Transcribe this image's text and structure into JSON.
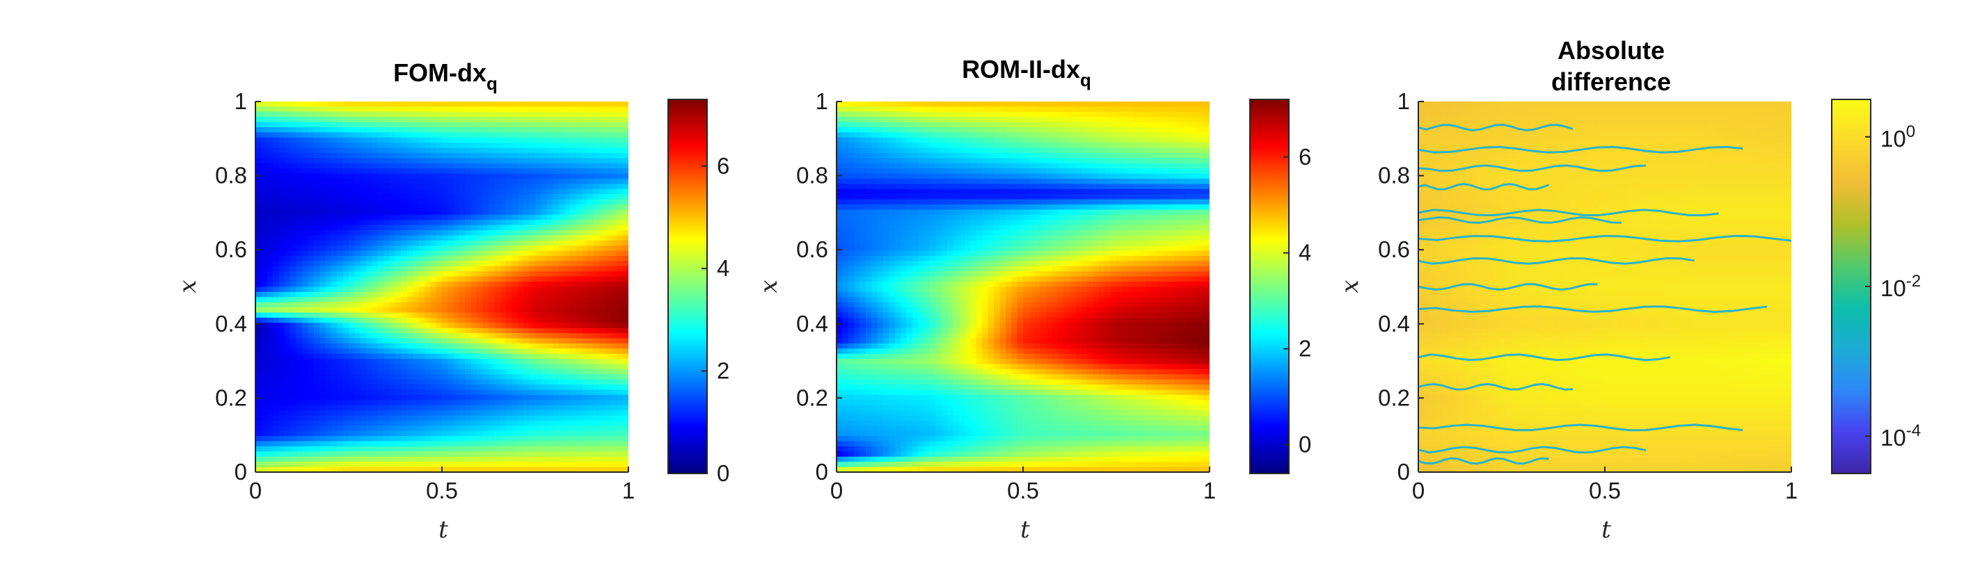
{
  "colors": {
    "jet": [
      "#00007f",
      "#0000ff",
      "#007fff",
      "#00ffff",
      "#7fff7f",
      "#ffff00",
      "#ff7f00",
      "#ff0000",
      "#7f0000"
    ],
    "parula": [
      "#3e26a8",
      "#4743f0",
      "#2e87f8",
      "#1cacd6",
      "#0cbfaa",
      "#53c969",
      "#b1c028",
      "#f1bd36",
      "#fbda2b",
      "#f9fb15"
    ],
    "axis": "#262626"
  },
  "chart_data": [
    {
      "type": "heatmap",
      "title_main": "FOM-dx",
      "title_sub": "q",
      "xlabel": "t",
      "ylabel": "x",
      "xlim": [
        0,
        1
      ],
      "ylim": [
        0,
        1
      ],
      "xticks": [
        "0",
        "0.5",
        "1"
      ],
      "yticks": [
        "0",
        "0.2",
        "0.4",
        "0.6",
        "0.8",
        "1"
      ],
      "colormap": "jet",
      "clim": [
        0,
        7.3
      ],
      "colorbar_ticks": [
        "0",
        "2",
        "4",
        "6"
      ],
      "colorbar_tick_values": [
        0,
        2,
        4,
        6
      ],
      "colorbar_scale": "linear",
      "x": [
        0,
        0.25,
        0.5,
        0.75,
        1
      ],
      "y": [
        0,
        0.1,
        0.2,
        0.3,
        0.4,
        0.44,
        0.5,
        0.6,
        0.7,
        0.8,
        0.9,
        1
      ],
      "z": [
        [
          4.5,
          5.0,
          5.0,
          5.0,
          5.0
        ],
        [
          1.0,
          1.8,
          2.4,
          3.0,
          3.2
        ],
        [
          0.8,
          1.0,
          1.3,
          1.8,
          2.2
        ],
        [
          0.6,
          1.2,
          2.0,
          3.5,
          4.5
        ],
        [
          0.3,
          2.8,
          5.0,
          6.5,
          7.2
        ],
        [
          4.0,
          4.5,
          5.5,
          6.7,
          7.2
        ],
        [
          0.8,
          3.0,
          5.2,
          6.5,
          7.0
        ],
        [
          0.6,
          1.5,
          3.0,
          4.5,
          5.5
        ],
        [
          0.5,
          0.7,
          1.0,
          2.0,
          4.0
        ],
        [
          0.8,
          1.0,
          1.2,
          1.5,
          1.8
        ],
        [
          1.2,
          2.0,
          2.7,
          3.0,
          3.3
        ],
        [
          4.5,
          5.0,
          5.0,
          5.0,
          5.0
        ]
      ]
    },
    {
      "type": "heatmap",
      "title_main": "ROM-II-dx",
      "title_sub": "q",
      "xlabel": "t",
      "ylabel": "x",
      "xlim": [
        0,
        1
      ],
      "ylim": [
        0,
        1
      ],
      "xticks": [
        "0",
        "0.5",
        "1"
      ],
      "yticks": [
        "0",
        "0.2",
        "0.4",
        "0.6",
        "0.8",
        "1"
      ],
      "colormap": "jet",
      "clim": [
        -0.6,
        7.2
      ],
      "colorbar_ticks": [
        "0",
        "2",
        "4",
        "6"
      ],
      "colorbar_tick_values": [
        0,
        2,
        4,
        6
      ],
      "colorbar_scale": "linear",
      "x": [
        0,
        0.25,
        0.5,
        0.75,
        1
      ],
      "y": [
        0,
        0.05,
        0.1,
        0.2,
        0.3,
        0.35,
        0.4,
        0.5,
        0.6,
        0.7,
        0.75,
        0.8,
        0.9,
        1
      ],
      "z": [
        [
          4.5,
          4.8,
          4.8,
          4.8,
          4.8
        ],
        [
          0.2,
          2.5,
          3.5,
          4.0,
          4.2
        ],
        [
          1.5,
          1.8,
          2.8,
          3.0,
          3.2
        ],
        [
          2.0,
          2.2,
          3.0,
          3.8,
          4.5
        ],
        [
          3.0,
          3.5,
          5.2,
          6.3,
          6.8
        ],
        [
          0.5,
          3.0,
          6.0,
          6.8,
          7.2
        ],
        [
          0.2,
          2.5,
          5.8,
          6.8,
          7.1
        ],
        [
          1.5,
          3.2,
          5.0,
          6.0,
          6.5
        ],
        [
          1.0,
          1.8,
          3.0,
          4.0,
          4.5
        ],
        [
          1.2,
          1.5,
          2.0,
          2.8,
          3.2
        ],
        [
          0.3,
          0.4,
          0.4,
          0.5,
          0.6
        ],
        [
          1.0,
          1.2,
          1.5,
          2.0,
          2.3
        ],
        [
          1.5,
          2.5,
          3.2,
          3.8,
          4.2
        ],
        [
          4.5,
          4.8,
          4.8,
          4.8,
          4.8
        ]
      ]
    },
    {
      "type": "heatmap",
      "title_main": "Absolute",
      "title_line2": "difference",
      "xlabel": "t",
      "ylabel": "x",
      "xlim": [
        0,
        1
      ],
      "ylim": [
        0,
        1
      ],
      "xticks": [
        "0",
        "0.5",
        "1"
      ],
      "yticks": [
        "0",
        "0.2",
        "0.4",
        "0.6",
        "0.8",
        "1"
      ],
      "colormap": "parula",
      "colorbar_scale": "log",
      "clim_log10": [
        -4.5,
        0.5
      ],
      "colorbar_ticks": [
        {
          "base": "10",
          "exp": "0"
        },
        {
          "base": "10",
          "exp": "-2"
        },
        {
          "base": "10",
          "exp": "-4"
        }
      ],
      "colorbar_tick_values": [
        0,
        -2,
        -4
      ],
      "x": [
        0,
        0.25,
        0.5,
        0.75,
        1
      ],
      "y": [
        0,
        0.1,
        0.2,
        0.3,
        0.4,
        0.5,
        0.6,
        0.7,
        0.8,
        0.9,
        1
      ],
      "z_log10": [
        [
          -0.5,
          -0.2,
          -0.2,
          -0.2,
          -0.3
        ],
        [
          -0.2,
          0.0,
          0.0,
          0.0,
          0.0
        ],
        [
          -0.4,
          0.2,
          0.3,
          0.3,
          0.3
        ],
        [
          0.0,
          0.3,
          0.4,
          0.4,
          0.5
        ],
        [
          -0.4,
          -0.1,
          0.0,
          0.1,
          0.1
        ],
        [
          -0.3,
          0.1,
          0.2,
          0.2,
          0.2
        ],
        [
          -0.2,
          0.1,
          0.1,
          0.0,
          0.0
        ],
        [
          -0.4,
          -0.1,
          0.1,
          0.2,
          0.2
        ],
        [
          -0.3,
          0.0,
          0.0,
          0.0,
          0.0
        ],
        [
          -0.3,
          -0.2,
          -0.1,
          -0.1,
          -0.2
        ],
        [
          -0.5,
          -0.3,
          -0.3,
          -0.3,
          -0.3
        ]
      ],
      "contour_lines_y": [
        0.03,
        0.06,
        0.12,
        0.23,
        0.31,
        0.44,
        0.5,
        0.57,
        0.63,
        0.68,
        0.7,
        0.77,
        0.82,
        0.87,
        0.93
      ]
    }
  ]
}
